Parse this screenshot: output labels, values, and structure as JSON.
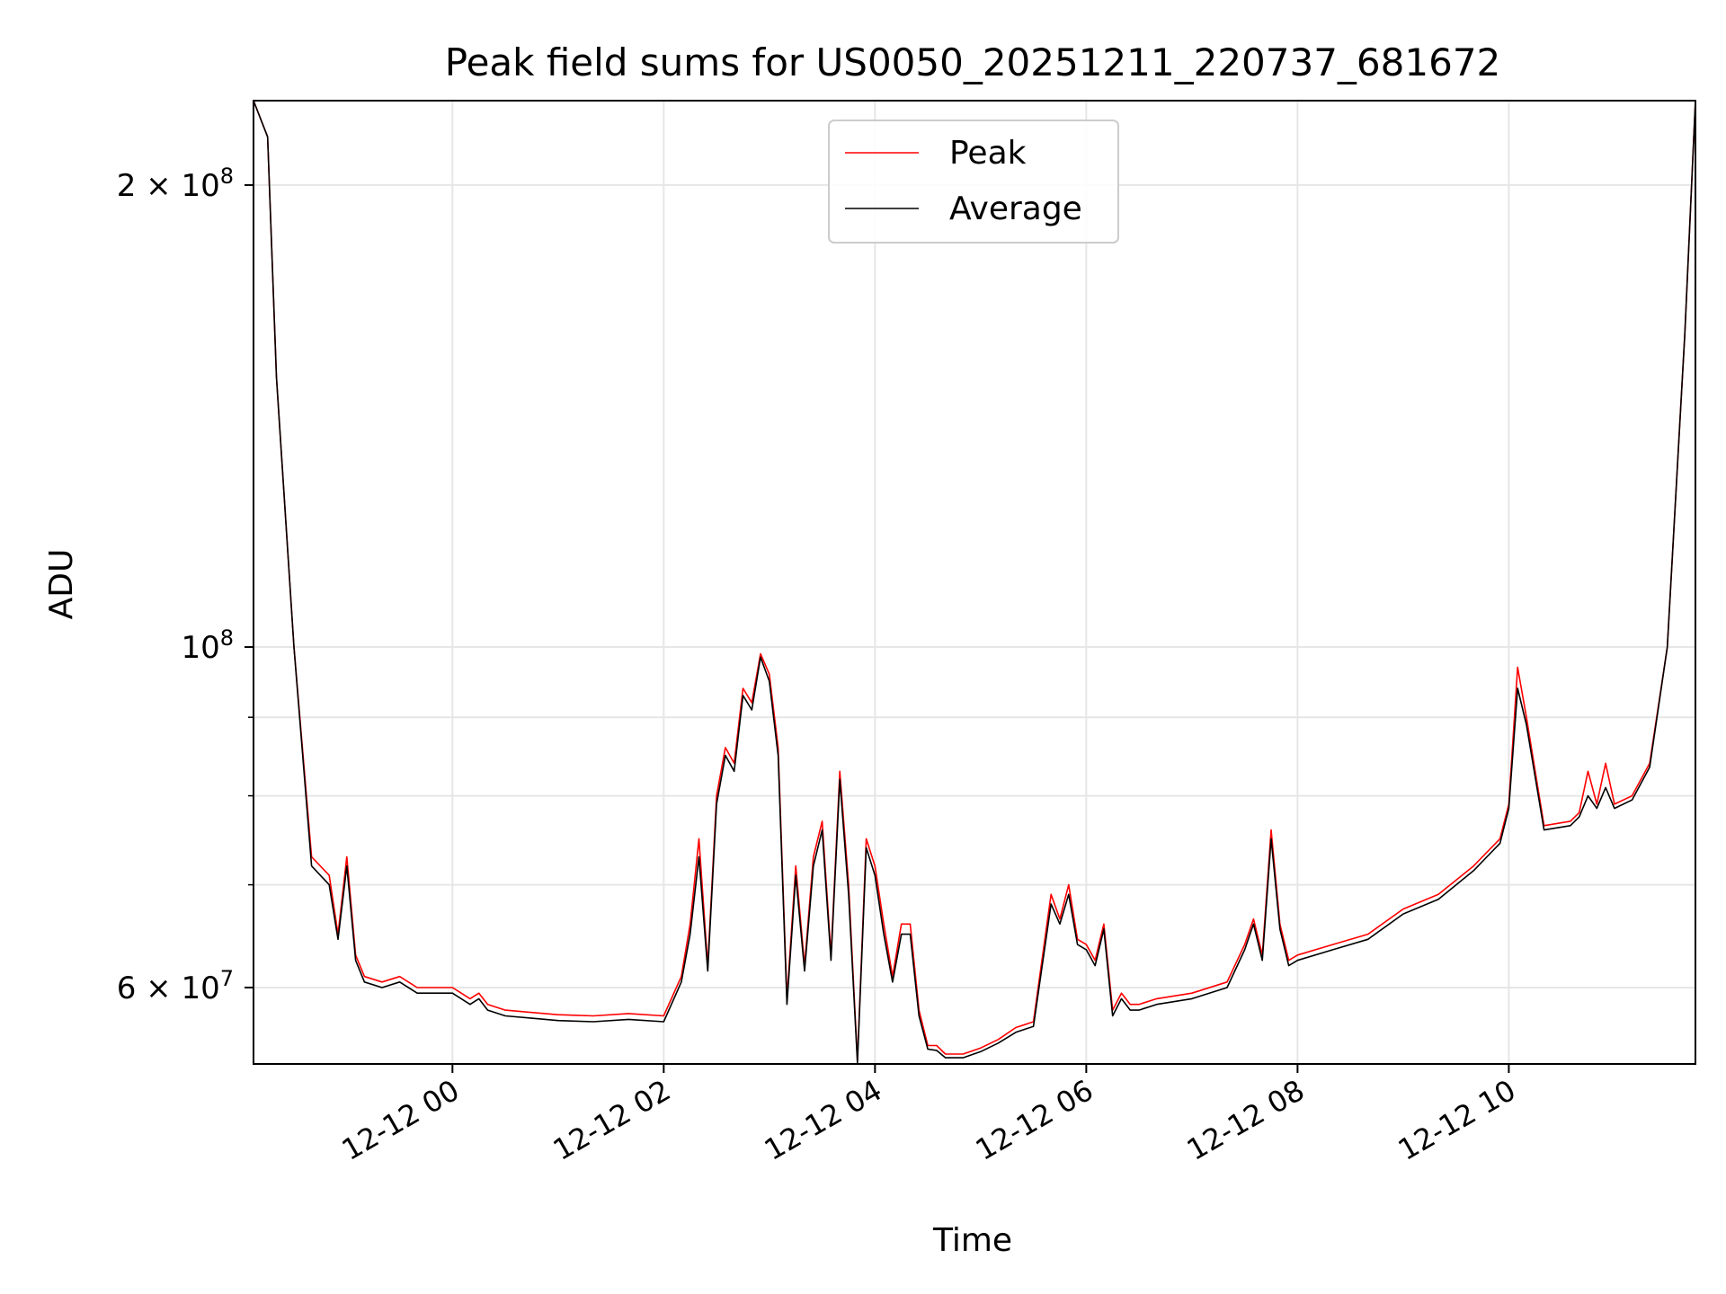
{
  "chart_data": {
    "type": "line",
    "title": "Peak field sums for US0050_20251211_220737_681672",
    "xlabel": "Time",
    "ylabel": "ADU",
    "yscale": "log",
    "grid": true,
    "legend_position": "top-center",
    "xlim": [
      "2025-12-11 22:07",
      "2025-12-12 11:46"
    ],
    "ylim": [
      53500000,
      227000000
    ],
    "x_ticks": [
      {
        "value": "2025-12-12 00:00",
        "label": "12-12 00"
      },
      {
        "value": "2025-12-12 02:00",
        "label": "12-12 02"
      },
      {
        "value": "2025-12-12 04:00",
        "label": "12-12 04"
      },
      {
        "value": "2025-12-12 06:00",
        "label": "12-12 06"
      },
      {
        "value": "2025-12-12 08:00",
        "label": "12-12 08"
      },
      {
        "value": "2025-12-12 10:00",
        "label": "12-12 10"
      }
    ],
    "y_ticks": [
      {
        "value": 60000000,
        "base": "6 × 10",
        "exp": "7"
      },
      {
        "value": 100000000,
        "base": "10",
        "exp": "8"
      },
      {
        "value": 200000000,
        "base": "2 × 10",
        "exp": "8"
      }
    ],
    "y_minor_ticks": [
      70000000,
      80000000,
      90000000
    ],
    "series": [
      {
        "name": "Peak",
        "color": "#ff0000",
        "x": [
          "2025-12-11 22:07",
          "2025-12-11 22:15",
          "2025-12-11 22:20",
          "2025-12-11 22:30",
          "2025-12-11 22:40",
          "2025-12-11 22:50",
          "2025-12-11 22:55",
          "2025-12-11 23:00",
          "2025-12-11 23:05",
          "2025-12-11 23:10",
          "2025-12-11 23:20",
          "2025-12-11 23:30",
          "2025-12-11 23:40",
          "2025-12-11 23:50",
          "2025-12-12 00:00",
          "2025-12-12 00:10",
          "2025-12-12 00:15",
          "2025-12-12 00:20",
          "2025-12-12 00:30",
          "2025-12-12 00:45",
          "2025-12-12 01:00",
          "2025-12-12 01:20",
          "2025-12-12 01:40",
          "2025-12-12 02:00",
          "2025-12-12 02:10",
          "2025-12-12 02:15",
          "2025-12-12 02:20",
          "2025-12-12 02:25",
          "2025-12-12 02:30",
          "2025-12-12 02:35",
          "2025-12-12 02:40",
          "2025-12-12 02:45",
          "2025-12-12 02:50",
          "2025-12-12 02:55",
          "2025-12-12 03:00",
          "2025-12-12 03:05",
          "2025-12-12 03:10",
          "2025-12-12 03:15",
          "2025-12-12 03:20",
          "2025-12-12 03:25",
          "2025-12-12 03:30",
          "2025-12-12 03:35",
          "2025-12-12 03:40",
          "2025-12-12 03:45",
          "2025-12-12 03:50",
          "2025-12-12 03:55",
          "2025-12-12 04:00",
          "2025-12-12 04:05",
          "2025-12-12 04:10",
          "2025-12-12 04:15",
          "2025-12-12 04:20",
          "2025-12-12 04:25",
          "2025-12-12 04:30",
          "2025-12-12 04:35",
          "2025-12-12 04:40",
          "2025-12-12 04:50",
          "2025-12-12 05:00",
          "2025-12-12 05:10",
          "2025-12-12 05:20",
          "2025-12-12 05:30",
          "2025-12-12 05:40",
          "2025-12-12 05:45",
          "2025-12-12 05:50",
          "2025-12-12 05:55",
          "2025-12-12 06:00",
          "2025-12-12 06:05",
          "2025-12-12 06:10",
          "2025-12-12 06:15",
          "2025-12-12 06:20",
          "2025-12-12 06:25",
          "2025-12-12 06:30",
          "2025-12-12 06:40",
          "2025-12-12 07:00",
          "2025-12-12 07:20",
          "2025-12-12 07:30",
          "2025-12-12 07:35",
          "2025-12-12 07:40",
          "2025-12-12 07:45",
          "2025-12-12 07:50",
          "2025-12-12 07:55",
          "2025-12-12 08:00",
          "2025-12-12 08:20",
          "2025-12-12 08:40",
          "2025-12-12 09:00",
          "2025-12-12 09:20",
          "2025-12-12 09:40",
          "2025-12-12 09:55",
          "2025-12-12 10:00",
          "2025-12-12 10:05",
          "2025-12-12 10:10",
          "2025-12-12 10:20",
          "2025-12-12 10:35",
          "2025-12-12 10:40",
          "2025-12-12 10:45",
          "2025-12-12 10:50",
          "2025-12-12 10:55",
          "2025-12-12 11:00",
          "2025-12-12 11:10",
          "2025-12-12 11:20",
          "2025-12-12 11:30",
          "2025-12-12 11:40",
          "2025-12-12 11:46"
        ],
        "values": [
          227000000,
          215000000,
          150000000,
          100000000,
          73000000,
          71000000,
          65000000,
          73000000,
          63000000,
          61000000,
          60500000,
          61000000,
          60000000,
          60000000,
          60000000,
          59000000,
          59500000,
          58500000,
          58000000,
          57800000,
          57600000,
          57500000,
          57700000,
          57500000,
          61000000,
          66000000,
          75000000,
          62000000,
          80000000,
          86000000,
          84000000,
          94000000,
          92000000,
          99000000,
          96000000,
          86000000,
          59000000,
          72000000,
          62000000,
          73000000,
          77000000,
          63000000,
          83000000,
          70000000,
          53800000,
          75000000,
          72000000,
          66000000,
          61000000,
          66000000,
          66000000,
          58000000,
          55000000,
          55000000,
          54300000,
          54300000,
          54800000,
          55500000,
          56500000,
          57000000,
          69000000,
          66500000,
          70000000,
          64500000,
          64000000,
          62500000,
          66000000,
          58000000,
          59500000,
          58500000,
          58500000,
          59000000,
          59500000,
          60500000,
          64000000,
          66500000,
          63000000,
          76000000,
          66000000,
          62500000,
          63000000,
          64000000,
          65000000,
          67500000,
          69000000,
          72000000,
          75000000,
          79000000,
          97000000,
          90000000,
          76500000,
          77000000,
          78000000,
          83000000,
          79000000,
          84000000,
          79000000,
          80000000,
          84000000,
          100000000,
          160000000,
          227000000
        ]
      },
      {
        "name": "Average",
        "color": "#000000",
        "x": [
          "2025-12-11 22:07",
          "2025-12-11 22:15",
          "2025-12-11 22:20",
          "2025-12-11 22:30",
          "2025-12-11 22:40",
          "2025-12-11 22:50",
          "2025-12-11 22:55",
          "2025-12-11 23:00",
          "2025-12-11 23:05",
          "2025-12-11 23:10",
          "2025-12-11 23:20",
          "2025-12-11 23:30",
          "2025-12-11 23:40",
          "2025-12-11 23:50",
          "2025-12-12 00:00",
          "2025-12-12 00:10",
          "2025-12-12 00:15",
          "2025-12-12 00:20",
          "2025-12-12 00:30",
          "2025-12-12 00:45",
          "2025-12-12 01:00",
          "2025-12-12 01:20",
          "2025-12-12 01:40",
          "2025-12-12 02:00",
          "2025-12-12 02:10",
          "2025-12-12 02:15",
          "2025-12-12 02:20",
          "2025-12-12 02:25",
          "2025-12-12 02:30",
          "2025-12-12 02:35",
          "2025-12-12 02:40",
          "2025-12-12 02:45",
          "2025-12-12 02:50",
          "2025-12-12 02:55",
          "2025-12-12 03:00",
          "2025-12-12 03:05",
          "2025-12-12 03:10",
          "2025-12-12 03:15",
          "2025-12-12 03:20",
          "2025-12-12 03:25",
          "2025-12-12 03:30",
          "2025-12-12 03:35",
          "2025-12-12 03:40",
          "2025-12-12 03:45",
          "2025-12-12 03:50",
          "2025-12-12 03:55",
          "2025-12-12 04:00",
          "2025-12-12 04:05",
          "2025-12-12 04:10",
          "2025-12-12 04:15",
          "2025-12-12 04:20",
          "2025-12-12 04:25",
          "2025-12-12 04:30",
          "2025-12-12 04:35",
          "2025-12-12 04:40",
          "2025-12-12 04:50",
          "2025-12-12 05:00",
          "2025-12-12 05:10",
          "2025-12-12 05:20",
          "2025-12-12 05:30",
          "2025-12-12 05:40",
          "2025-12-12 05:45",
          "2025-12-12 05:50",
          "2025-12-12 05:55",
          "2025-12-12 06:00",
          "2025-12-12 06:05",
          "2025-12-12 06:10",
          "2025-12-12 06:15",
          "2025-12-12 06:20",
          "2025-12-12 06:25",
          "2025-12-12 06:30",
          "2025-12-12 06:40",
          "2025-12-12 07:00",
          "2025-12-12 07:20",
          "2025-12-12 07:30",
          "2025-12-12 07:35",
          "2025-12-12 07:40",
          "2025-12-12 07:45",
          "2025-12-12 07:50",
          "2025-12-12 07:55",
          "2025-12-12 08:00",
          "2025-12-12 08:20",
          "2025-12-12 08:40",
          "2025-12-12 09:00",
          "2025-12-12 09:20",
          "2025-12-12 09:40",
          "2025-12-12 09:55",
          "2025-12-12 10:00",
          "2025-12-12 10:05",
          "2025-12-12 10:10",
          "2025-12-12 10:20",
          "2025-12-12 10:35",
          "2025-12-12 10:40",
          "2025-12-12 10:45",
          "2025-12-12 10:50",
          "2025-12-12 10:55",
          "2025-12-12 11:00",
          "2025-12-12 11:10",
          "2025-12-12 11:20",
          "2025-12-12 11:30",
          "2025-12-12 11:40",
          "2025-12-12 11:46"
        ],
        "values": [
          227000000,
          215000000,
          150000000,
          100000000,
          72000000,
          70000000,
          64500000,
          72000000,
          62500000,
          60500000,
          60000000,
          60500000,
          59500000,
          59500000,
          59500000,
          58500000,
          59000000,
          58000000,
          57500000,
          57300000,
          57100000,
          57000000,
          57200000,
          57000000,
          60500000,
          65000000,
          73000000,
          61500000,
          79000000,
          85000000,
          83000000,
          93000000,
          91000000,
          98500000,
          95000000,
          85000000,
          58500000,
          71000000,
          61500000,
          72000000,
          76000000,
          62500000,
          82000000,
          69000000,
          53600000,
          74000000,
          71000000,
          65000000,
          60500000,
          65000000,
          65000000,
          57500000,
          54700000,
          54600000,
          54000000,
          54000000,
          54500000,
          55200000,
          56100000,
          56600000,
          68000000,
          66000000,
          69000000,
          64000000,
          63500000,
          62000000,
          65500000,
          57500000,
          59000000,
          58000000,
          58000000,
          58500000,
          59000000,
          60000000,
          63500000,
          66000000,
          62500000,
          75000000,
          65500000,
          62000000,
          62500000,
          63500000,
          64500000,
          67000000,
          68500000,
          71500000,
          74500000,
          78500000,
          94000000,
          89000000,
          76000000,
          76500000,
          77500000,
          80000000,
          78500000,
          81000000,
          78500000,
          79500000,
          83500000,
          100000000,
          160000000,
          227000000
        ]
      }
    ]
  }
}
